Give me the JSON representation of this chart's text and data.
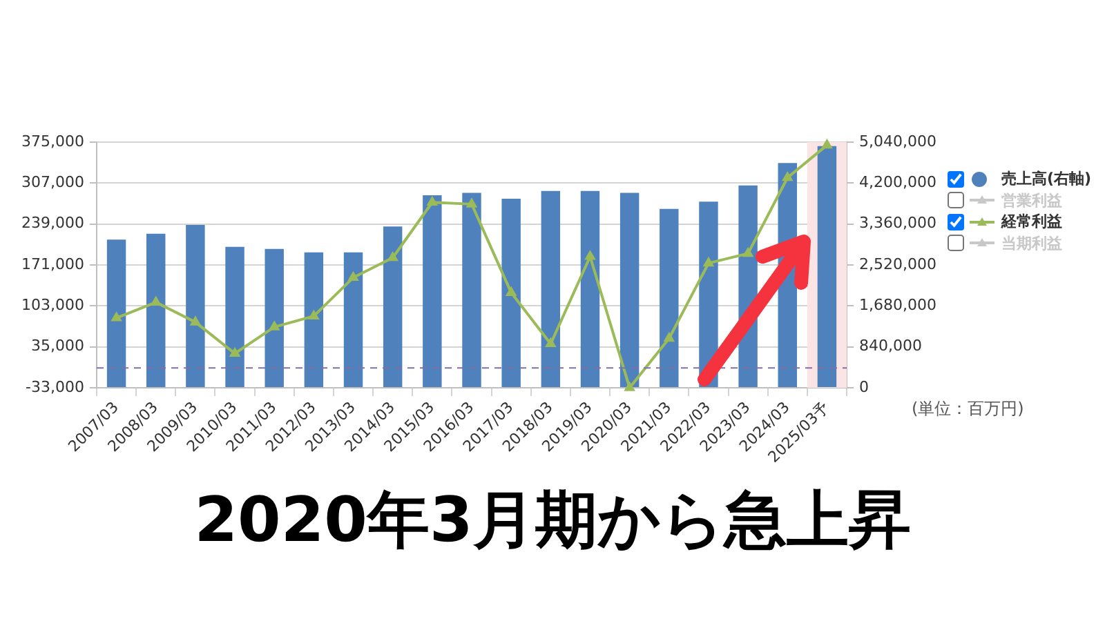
{
  "chart_data": {
    "type": "bar",
    "title": "2020年3月期から急上昇",
    "annotations": [
      "(単位：百万円)"
    ],
    "categories": [
      "2007/03",
      "2008/03",
      "2009/03",
      "2010/03",
      "2011/03",
      "2012/03",
      "2013/03",
      "2014/03",
      "2015/03",
      "2016/03",
      "2017/03",
      "2018/03",
      "2019/03",
      "2020/03",
      "2021/03",
      "2022/03",
      "2023/03",
      "2024/03",
      "2025/03予"
    ],
    "series": [
      {
        "name": "売上高(右軸)",
        "axis": "y2",
        "color": "#4f81bd",
        "values": [
          3040000,
          3160000,
          3340000,
          2890000,
          2850000,
          2780000,
          2780000,
          3310000,
          3950000,
          4000000,
          3880000,
          4040000,
          4040000,
          4000000,
          3670000,
          3820000,
          4150000,
          4610000,
          4960000
        ]
      },
      {
        "name": "営業利益",
        "type": "line",
        "color": "#c8c8c8",
        "values": [
          null,
          null,
          null,
          null,
          null,
          null,
          null,
          null,
          null,
          null,
          null,
          null,
          null,
          null,
          null,
          null,
          null,
          null,
          null
        ]
      },
      {
        "name": "経常利益",
        "type": "line",
        "color": "#9bbb59",
        "values": [
          83000,
          109000,
          76000,
          24000,
          68000,
          86000,
          150000,
          183000,
          275000,
          272000,
          125000,
          40000,
          185000,
          -33000,
          49000,
          174000,
          190000,
          316000,
          370000
        ]
      },
      {
        "name": "当期利益",
        "type": "line",
        "color": "#c8c8c8",
        "values": [
          null,
          null,
          null,
          null,
          null,
          null,
          null,
          null,
          null,
          null,
          null,
          null,
          null,
          null,
          null,
          null,
          null,
          null,
          null
        ]
      }
    ],
    "ylim": [
      -33000,
      375000
    ],
    "yticks": [
      {
        "value": -33000,
        "label": "-33,000"
      },
      {
        "value": 35000,
        "label": "35,000"
      },
      {
        "value": 103000,
        "label": "103,000"
      },
      {
        "value": 171000,
        "label": "171,000"
      },
      {
        "value": 239000,
        "label": "239,000"
      },
      {
        "value": 307000,
        "label": "307,000"
      },
      {
        "value": 375000,
        "label": "375,000"
      }
    ],
    "y2lim": [
      0,
      5040000
    ],
    "y2ticks": [
      0,
      {
        "value": 840000,
        "label": "840,000"
      },
      {
        "value": 1680000,
        "label": "1,680,000"
      },
      {
        "value": 2520000,
        "label": "2,520,000"
      },
      {
        "value": 3360000,
        "label": "3,360,000"
      },
      {
        "value": 4200000,
        "label": "4,200,000"
      },
      {
        "value": 5040000,
        "label": "5,040,000"
      }
    ],
    "ref_lines": [
      {
        "axis": "y",
        "value": 0,
        "color": "#8070a8",
        "line_style": "dashed"
      }
    ],
    "bands": [
      {
        "axis": "x",
        "from": "2025/03予",
        "to": "2025/03予",
        "color": "#fbe4e4"
      }
    ],
    "grid": "y",
    "legend": "right",
    "marker": "triangle"
  }
}
